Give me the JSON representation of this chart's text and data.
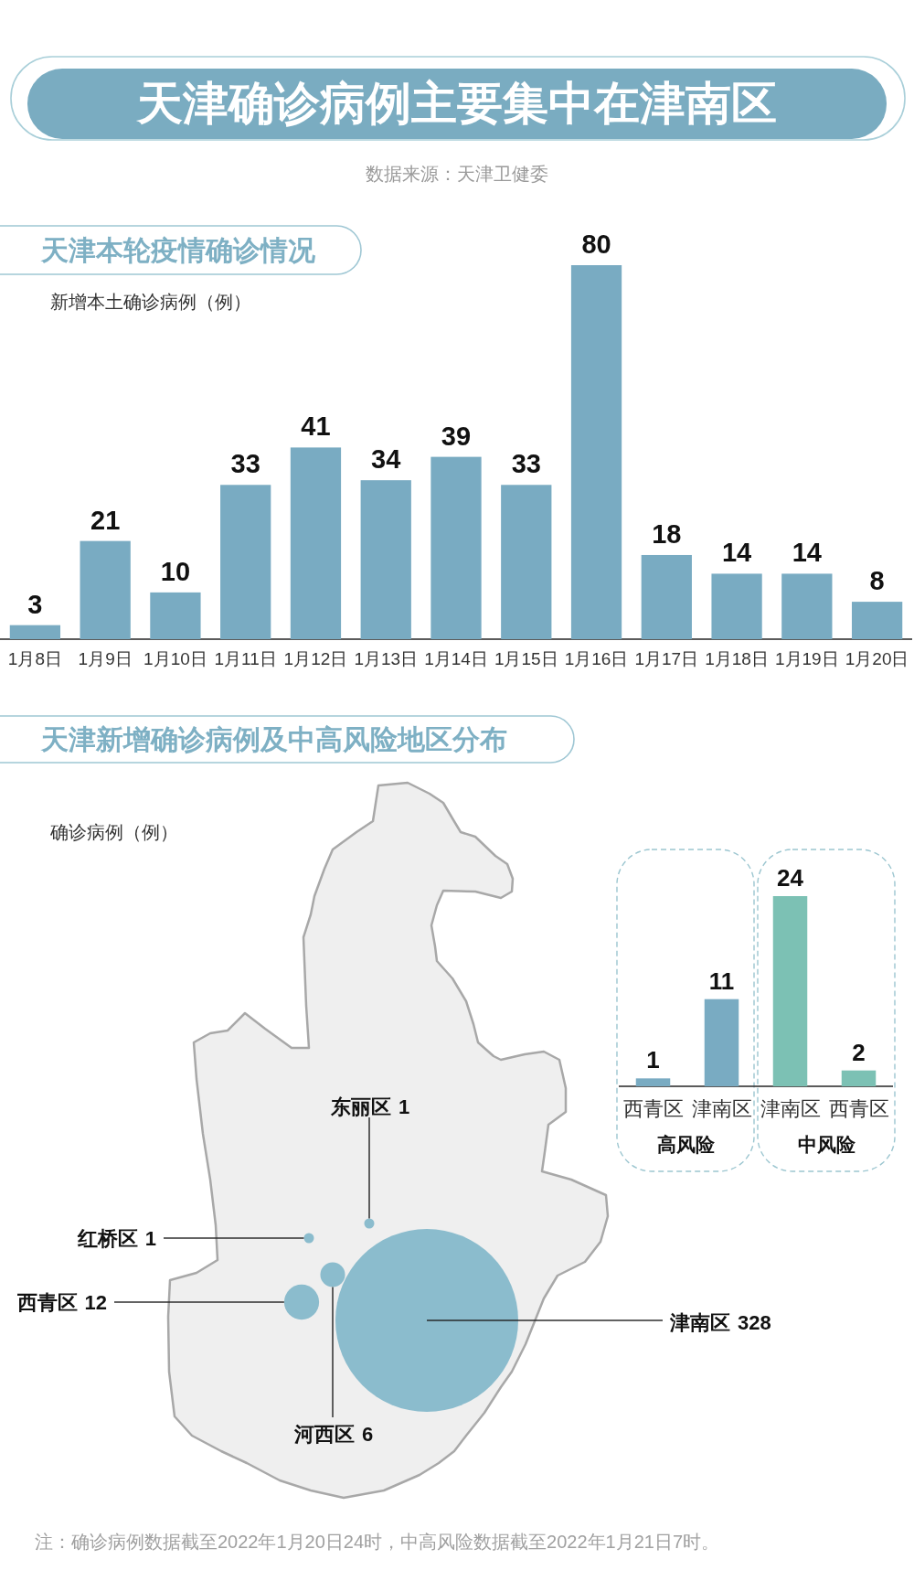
{
  "chart_data": [
    {
      "type": "other",
      "title": "天津确诊病例主要集中在津南区",
      "subtitle": "数据来源：天津卫健委",
      "annotations": [
        "注：确诊病例数据截至2022年1月20日24时，中高风险数据截至2022年1月21日7时。"
      ]
    },
    {
      "type": "bar",
      "title": "天津本轮疫情确诊情况",
      "ylabel": "新增本土确诊病例（例）",
      "categories": [
        "1月8日",
        "1月9日",
        "1月10日",
        "1月11日",
        "1月12日",
        "1月13日",
        "1月14日",
        "1月15日",
        "1月16日",
        "1月17日",
        "1月18日",
        "1月19日",
        "1月20日"
      ],
      "values": [
        3,
        21,
        10,
        33,
        41,
        34,
        39,
        33,
        80,
        18,
        14,
        14,
        8
      ],
      "color": "#79abc2",
      "data_labels": true
    },
    {
      "type": "other",
      "title": "天津新增确诊病例及中高风险地区分布",
      "subtitle": "确诊病例（例）",
      "categories": [
        "东丽区",
        "红桥区",
        "西青区",
        "河西区",
        "津南区"
      ],
      "values": [
        1,
        1,
        12,
        6,
        328
      ],
      "data_labels": true
    },
    {
      "type": "bar",
      "categories": [
        "西青区",
        "津南区",
        "津南区",
        "西青区"
      ],
      "series": [
        {
          "name": "高风险",
          "color": "#79abc2",
          "values": [
            1,
            11,
            null,
            null
          ]
        },
        {
          "name": "中风险",
          "color": "#7cc1b4",
          "values": [
            null,
            null,
            24,
            2
          ]
        }
      ],
      "data_labels": true
    }
  ]
}
